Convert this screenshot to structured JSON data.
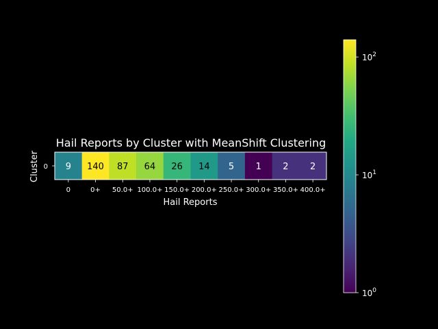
{
  "chart_data": {
    "type": "heatmap",
    "title": "Hail Reports by Cluster with MeanShift Clustering",
    "xlabel": "Hail Reports",
    "ylabel": "Cluster",
    "x_categories": [
      "0",
      "0+",
      "50.0+",
      "100.0+",
      "150.0+",
      "200.0+",
      "250.0+",
      "300.0+",
      "350.0+",
      "400.0+"
    ],
    "y_categories": [
      "0"
    ],
    "values": [
      [
        9,
        140,
        87,
        64,
        26,
        14,
        5,
        1,
        2,
        2
      ]
    ],
    "color_scale": "log",
    "colormap": "viridis",
    "colorbar": {
      "range": [
        1,
        140
      ],
      "ticks": [
        {
          "value": 1,
          "base": "10",
          "exp": "0"
        },
        {
          "value": 10,
          "base": "10",
          "exp": "1"
        },
        {
          "value": 100,
          "base": "10",
          "exp": "2"
        }
      ]
    },
    "text_colors": {
      "on_light": "#000000",
      "on_dark": "#ffffff"
    }
  }
}
